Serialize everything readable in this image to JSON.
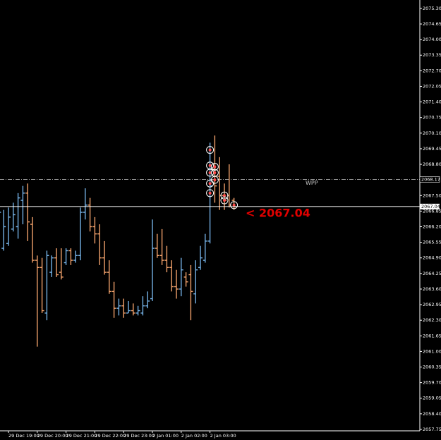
{
  "chart_data": {
    "type": "ohlc",
    "categories": [
      null,
      null,
      "29 Dec 19:00",
      null,
      null,
      null,
      null,
      null,
      "29 Dec 20:00",
      null,
      null,
      null,
      null,
      null,
      "29 Dec 21:00",
      null,
      null,
      null,
      null,
      null,
      "29 Dec 22:00",
      null,
      null,
      null,
      null,
      null,
      "29 Dec 23:00",
      null,
      null,
      null,
      null,
      null,
      "2 Jan 01:00",
      null,
      null,
      null,
      null,
      null,
      "2 Jan 02:00",
      null,
      null,
      null,
      null,
      null,
      "2 Jan 03:00",
      null,
      null,
      null,
      null,
      null
    ],
    "open": [
      2064.2,
      2065.3,
      2065.5,
      2066.1,
      2066.2,
      2067.3,
      2067.6,
      2066.3,
      2064.8,
      2064.5,
      2062.6,
      2064.3,
      2064.9,
      2064.3,
      2064.7,
      2065.2,
      2064.8,
      2065.0,
      2066.8,
      2067.1,
      2066.2,
      2065.9,
      2064.9,
      2064.3,
      2063.5,
      2062.8,
      2062.9,
      2062.6,
      2062.7,
      2062.6,
      2062.6,
      2062.9,
      2063.2,
      2065.3,
      2065.0,
      2064.8,
      2064.5,
      2063.7,
      2063.6,
      2064.1,
      2064.2,
      2063.4,
      2064.5,
      2064.8,
      2065.6,
      2068.6,
      2068.3,
      2067.5,
      2067.5,
      2067.3
    ],
    "high": [
      2067.1,
      2066.9,
      2067.0,
      2067.2,
      2067.6,
      2067.9,
      2068.0,
      2066.6,
      2065.0,
      2064.9,
      2065.2,
      2065.0,
      2065.3,
      2065.3,
      2065.3,
      2065.3,
      2065.2,
      2067.0,
      2067.8,
      2067.4,
      2066.6,
      2066.3,
      2065.6,
      2064.8,
      2063.9,
      2063.2,
      2063.2,
      2063.1,
      2063.0,
      2062.9,
      2063.3,
      2063.5,
      2066.5,
      2065.9,
      2066.1,
      2065.4,
      2064.8,
      2064.4,
      2064.9,
      2064.3,
      2064.6,
      2064.8,
      2065.4,
      2065.9,
      2069.7,
      2070.0,
      2069.1,
      2068.0,
      2068.8,
      2067.4
    ],
    "low": [
      2064.1,
      2065.2,
      2065.4,
      2066.0,
      2065.7,
      2066.3,
      2065.6,
      2064.7,
      2061.2,
      2062.6,
      2062.3,
      2064.1,
      2064.1,
      2064.0,
      2064.6,
      2064.6,
      2064.7,
      2064.8,
      2066.5,
      2066.0,
      2065.5,
      2064.6,
      2064.2,
      2063.4,
      2062.4,
      2062.5,
      2062.4,
      2062.6,
      2062.5,
      2062.5,
      2062.5,
      2062.8,
      2063.1,
      2064.9,
      2064.6,
      2064.3,
      2063.5,
      2063.2,
      2063.3,
      2063.7,
      2062.3,
      2063.0,
      2064.4,
      2064.7,
      2065.5,
      2067.2,
      2066.9,
      2066.9,
      2067.0,
      2066.9
    ],
    "close": [
      2066.8,
      2066.2,
      2066.6,
      2066.7,
      2067.4,
      2067.6,
      2066.4,
      2064.8,
      2064.5,
      2062.7,
      2065.0,
      2064.9,
      2064.2,
      2064.1,
      2065.2,
      2064.8,
      2065.0,
      2066.8,
      2067.1,
      2066.2,
      2065.9,
      2064.9,
      2064.3,
      2063.5,
      2062.8,
      2062.9,
      2062.6,
      2062.7,
      2062.6,
      2062.7,
      2062.9,
      2063.1,
      2065.3,
      2065.0,
      2064.8,
      2064.5,
      2063.7,
      2063.6,
      2064.4,
      2063.9,
      2063.5,
      2064.4,
      2064.9,
      2065.6,
      2067.9,
      2067.9,
      2067.5,
      2067.3,
      2067.1,
      2067.04
    ],
    "up_color": "#74b0e4",
    "down_color": "#f0a06a",
    "markers": {
      "bar": [
        44,
        44,
        44,
        44,
        44,
        45,
        45,
        45,
        47,
        47,
        49
      ],
      "price": [
        2069.4,
        2068.75,
        2068.45,
        2068.0,
        2067.6,
        2068.7,
        2068.45,
        2068.15,
        2067.5,
        2067.3,
        2067.1
      ],
      "color": "#ff4b4b"
    },
    "ylim": [
      2057.69,
      2075.65
    ],
    "yticks": [
      {
        "value": 2075.3,
        "label": "2075.30"
      },
      {
        "value": 2074.65,
        "label": "2074.65"
      },
      {
        "value": 2074.0,
        "label": "2074.00"
      },
      {
        "value": 2073.35,
        "label": "2073.35"
      },
      {
        "value": 2072.7,
        "label": "2072.70"
      },
      {
        "value": 2072.05,
        "label": "2072.05"
      },
      {
        "value": 2071.4,
        "label": "2071.40"
      },
      {
        "value": 2070.75,
        "label": "2070.75"
      },
      {
        "value": 2070.1,
        "label": "2070.10"
      },
      {
        "value": 2069.45,
        "label": "2069.45"
      },
      {
        "value": 2068.8,
        "label": "2068.80"
      },
      {
        "value": 2067.5,
        "label": "2067.50"
      },
      {
        "value": 2066.85,
        "label": "2066.85"
      },
      {
        "value": 2066.2,
        "label": "2066.20"
      },
      {
        "value": 2065.55,
        "label": "2065.55"
      },
      {
        "value": 2064.9,
        "label": "2064.90"
      },
      {
        "value": 2064.25,
        "label": "2064.25"
      },
      {
        "value": 2063.6,
        "label": "2063.60"
      },
      {
        "value": 2062.95,
        "label": "2062.95"
      },
      {
        "value": 2062.3,
        "label": "2062.30"
      },
      {
        "value": 2061.65,
        "label": "2061.65"
      },
      {
        "value": 2061.0,
        "label": "2061.00"
      },
      {
        "value": 2060.35,
        "label": "2060.35"
      },
      {
        "value": 2059.7,
        "label": "2059.70"
      },
      {
        "value": 2059.05,
        "label": "2059.05"
      },
      {
        "value": 2058.4,
        "label": "2058.40"
      },
      {
        "value": 2057.75,
        "label": "2057.75"
      }
    ],
    "level": {
      "name": "WPP",
      "value": 2068.17,
      "label": "2068.17",
      "color": "#c8c8c8"
    },
    "current": {
      "value": 2067.04,
      "label": "2067.04",
      "annotation": "< 2067.04",
      "color": "#e00000"
    }
  }
}
